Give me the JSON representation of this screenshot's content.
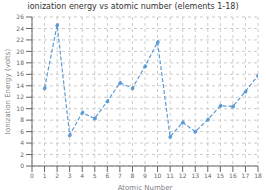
{
  "chart_data": {
    "type": "line",
    "title": "ionization energy vs atomic number (elements 1-18)",
    "xlabel": "Atomic Number",
    "ylabel": "Ionization Energy (volts)",
    "x": [
      1,
      2,
      3,
      4,
      5,
      6,
      7,
      8,
      9,
      10,
      11,
      12,
      13,
      14,
      15,
      16,
      17,
      18
    ],
    "values": [
      13.6,
      24.6,
      5.4,
      9.3,
      8.3,
      11.3,
      14.5,
      13.6,
      17.4,
      21.6,
      5.1,
      7.6,
      6.0,
      8.1,
      10.5,
      10.4,
      13.0,
      15.8
    ],
    "color": "#5b9bd5",
    "marker": "circle",
    "line_style": "dashed",
    "xlim": [
      0,
      18
    ],
    "ylim": [
      0,
      26
    ],
    "xticks": [
      0,
      1,
      2,
      3,
      4,
      5,
      6,
      7,
      8,
      9,
      10,
      11,
      12,
      13,
      14,
      15,
      16,
      17,
      18
    ],
    "yticks": [
      0,
      2,
      4,
      6,
      8,
      10,
      12,
      14,
      16,
      18,
      20,
      22,
      24,
      26
    ],
    "grid": true
  }
}
